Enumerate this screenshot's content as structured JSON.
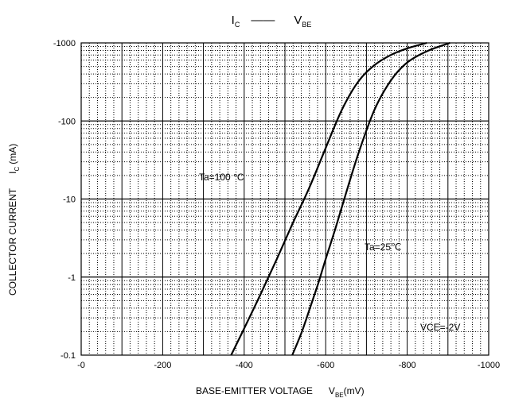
{
  "chart_data": {
    "type": "line",
    "title": {
      "lhs": "I",
      "lhs_sub": "C",
      "rhs": "V",
      "rhs_sub": "BE"
    },
    "xlabel": {
      "main": "BASE-EMITTER VOLTAGE",
      "sym": "V",
      "sym_sub": "BE",
      "unit": "(mV)"
    },
    "ylabel": {
      "main": "COLLECTOR CURRENT",
      "sym": "I",
      "sym_sub": "C",
      "unit": "(mA)"
    },
    "xlim": [
      0,
      -1000
    ],
    "ylim": [
      -0.1,
      -1000
    ],
    "yscale": "log",
    "grid": true,
    "x_ticks": [
      {
        "v": 0,
        "label": "-0"
      },
      {
        "v": -200,
        "label": "-200"
      },
      {
        "v": -400,
        "label": "-400"
      },
      {
        "v": -600,
        "label": "-600"
      },
      {
        "v": -800,
        "label": "-800"
      },
      {
        "v": -1000,
        "label": "-1000"
      }
    ],
    "y_ticks": [
      {
        "v": -1000,
        "label": "-1000"
      },
      {
        "v": -100,
        "label": "-100"
      },
      {
        "v": -10,
        "label": "-10"
      },
      {
        "v": -1,
        "label": "-1"
      },
      {
        "v": -0.1,
        "label": "-0.1"
      }
    ],
    "series": [
      {
        "name": "Ta=100 °C",
        "x": [
          -368,
          -400,
          -440,
          -480,
          -520,
          -560,
          -600,
          -640,
          -680,
          -720,
          -760,
          -800,
          -848
        ],
        "y": [
          -0.1,
          -0.22,
          -0.6,
          -1.7,
          -5.0,
          -14,
          -45,
          -140,
          -320,
          -520,
          -700,
          -850,
          -1000
        ]
      },
      {
        "name": "Ta=25℃",
        "x": [
          -518,
          -540,
          -560,
          -580,
          -600,
          -620,
          -640,
          -680,
          -720,
          -760,
          -800,
          -850,
          -905
        ],
        "y": [
          -0.1,
          -0.19,
          -0.38,
          -0.78,
          -1.7,
          -3.6,
          -8.0,
          -38,
          -140,
          -330,
          -560,
          -790,
          -1000
        ]
      }
    ],
    "annotations": {
      "ta100": "Ta=100 °C",
      "ta25": "Ta=25℃",
      "vce": "VCE=-2V"
    }
  }
}
